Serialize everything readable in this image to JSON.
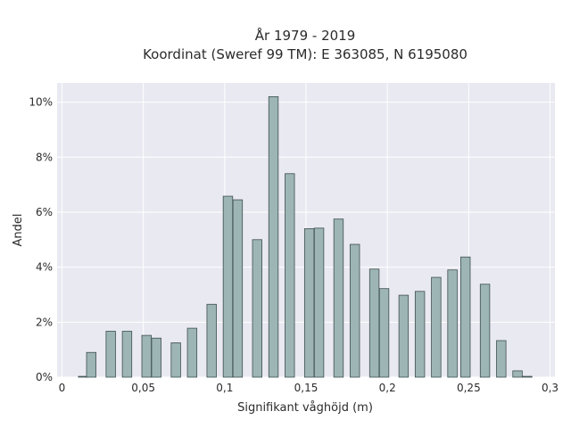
{
  "chart_data": {
    "type": "bar",
    "title": "År 1979 - 2019",
    "subtitle": "Koordinat (Sweref 99 TM): E 363085, N 6195080",
    "xlabel": "Signifikant våghöjd (m)",
    "ylabel": "Andel",
    "xlim": [
      -0.003,
      0.303
    ],
    "ylim": [
      0,
      0.107
    ],
    "x_ticks": [
      0,
      0.05,
      0.1,
      0.15,
      0.2,
      0.25,
      0.3
    ],
    "x_tick_labels": [
      "0",
      "0,05",
      "0,1",
      "0,15",
      "0,2",
      "0,25",
      "0,3"
    ],
    "y_ticks": [
      0,
      0.02,
      0.04,
      0.06,
      0.08,
      0.1
    ],
    "y_tick_labels": [
      "0%",
      "2%",
      "4%",
      "6%",
      "8%",
      "10%"
    ],
    "grid": true,
    "bar_color": "#9db5b5",
    "bar_edge_color": "#3f4f4f",
    "background_color": "#e9e9f1",
    "bar_width": 0.0058,
    "x": [
      0.013,
      0.018,
      0.03,
      0.04,
      0.052,
      0.058,
      0.07,
      0.08,
      0.092,
      0.102,
      0.108,
      0.12,
      0.13,
      0.14,
      0.152,
      0.158,
      0.17,
      0.18,
      0.192,
      0.198,
      0.21,
      0.22,
      0.23,
      0.24,
      0.248,
      0.26,
      0.27,
      0.28,
      0.286
    ],
    "values": [
      0.0003,
      0.009,
      0.0167,
      0.0167,
      0.0152,
      0.0142,
      0.0125,
      0.0178,
      0.0265,
      0.0658,
      0.0645,
      0.05,
      0.102,
      0.074,
      0.054,
      0.0542,
      0.0575,
      0.0483,
      0.0393,
      0.0322,
      0.0298,
      0.0312,
      0.0363,
      0.039,
      0.0437,
      0.0338,
      0.0133,
      0.0023,
      0.0003
    ]
  }
}
